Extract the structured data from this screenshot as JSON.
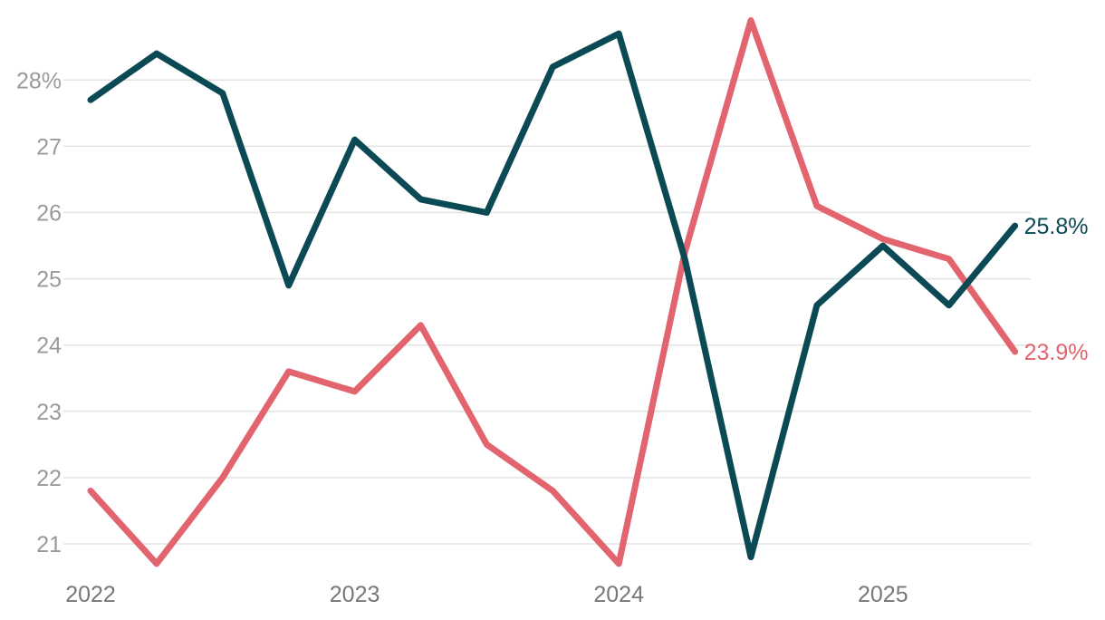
{
  "chart_data": {
    "type": "line",
    "title": "",
    "xlabel": "",
    "ylabel": "",
    "x": [
      "2022-Q1",
      "2022-Q2",
      "2022-Q3",
      "2022-Q4",
      "2023-Q1",
      "2023-Q2",
      "2023-Q3",
      "2023-Q4",
      "2024-Q1",
      "2024-Q2",
      "2024-Q3",
      "2024-Q4",
      "2025-Q1",
      "2025-Q2",
      "2025-Q3"
    ],
    "x_ticks": [
      "2022",
      "2023",
      "2024",
      "2025"
    ],
    "y_ticks": [
      "21",
      "22",
      "23",
      "24",
      "25",
      "26",
      "27",
      "28%"
    ],
    "ylim": [
      20.7,
      28.9
    ],
    "grid": true,
    "series": [
      {
        "color": "#0b4a55",
        "values": [
          27.7,
          28.4,
          27.8,
          24.9,
          27.1,
          26.2,
          26.0,
          28.2,
          28.7,
          25.3,
          20.8,
          24.6,
          25.5,
          24.6,
          25.8
        ],
        "end_label": "25.8%"
      },
      {
        "color": "#e2646e",
        "values": [
          21.8,
          20.7,
          22.0,
          23.6,
          23.3,
          24.3,
          22.5,
          21.8,
          20.7,
          25.4,
          28.9,
          26.1,
          25.6,
          25.3,
          23.9
        ],
        "end_label": "23.9%"
      }
    ]
  }
}
